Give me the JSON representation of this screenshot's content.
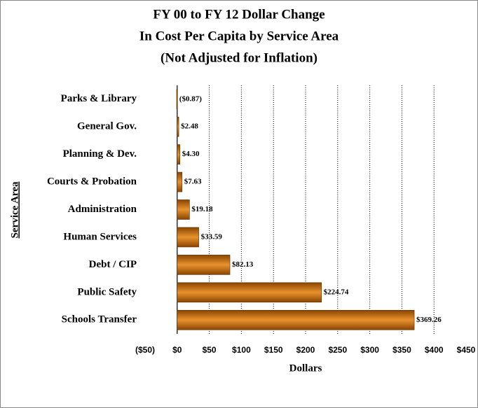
{
  "chart_data": {
    "type": "barh",
    "title": [
      "FY 00 to FY 12 Dollar Change",
      "In Cost Per Capita by Service Area",
      "(Not Adjusted for Inflation)"
    ],
    "ylabel": "Service Area",
    "xlabel": "Dollars",
    "categories": [
      "Parks & Library",
      "General Gov.",
      "Planning & Dev.",
      "Courts & Probation",
      "Administration",
      "Human Services",
      "Debt / CIP",
      "Public Safety",
      "Schools Transfer"
    ],
    "values": [
      -0.87,
      2.48,
      4.3,
      7.63,
      19.18,
      33.59,
      82.13,
      224.74,
      369.26
    ],
    "value_labels": [
      "($0.87)",
      "$2.48",
      "$4.30",
      "$7.63",
      "$19.18",
      "$33.59",
      "$82.13",
      "$224.74",
      "$369.26"
    ],
    "color": "#e8922e",
    "xlim": [
      -50,
      450
    ],
    "xticks": [
      {
        "value": -50,
        "label": "($50)"
      },
      {
        "value": 0,
        "label": "$0"
      },
      {
        "value": 50,
        "label": "$50"
      },
      {
        "value": 100,
        "label": "$100"
      },
      {
        "value": 150,
        "label": "$150"
      },
      {
        "value": 200,
        "label": "$200"
      },
      {
        "value": 250,
        "label": "$250"
      },
      {
        "value": 300,
        "label": "$300"
      },
      {
        "value": 350,
        "label": "$350"
      },
      {
        "value": 400,
        "label": "$400"
      },
      {
        "value": 450,
        "label": "$450"
      }
    ],
    "grid": true
  }
}
